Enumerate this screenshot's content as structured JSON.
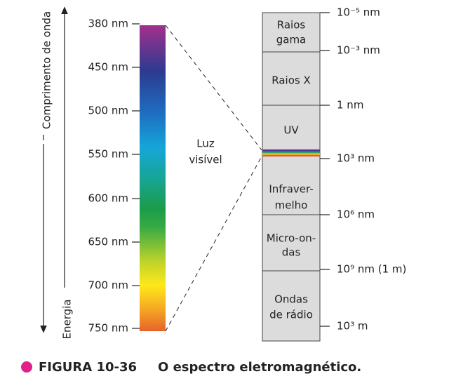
{
  "axes": {
    "wavelength": "Comprimento de onda",
    "energy": "Energia"
  },
  "visible_scale": [
    "380 nm",
    "450 nm",
    "500 nm",
    "550 nm",
    "600 nm",
    "650 nm",
    "700 nm",
    "750 nm"
  ],
  "visible_label": [
    "Luz",
    "visível"
  ],
  "regions": [
    {
      "lines": [
        "Raios",
        "gama"
      ]
    },
    {
      "lines": [
        "Raios X"
      ]
    },
    {
      "lines": [
        "UV"
      ]
    },
    {
      "lines": [
        "Infraver-",
        "melho"
      ]
    },
    {
      "lines": [
        "Micro-on-",
        "das"
      ]
    },
    {
      "lines": [
        "Ondas",
        "de rádio"
      ]
    }
  ],
  "spectrum_ticks": [
    "10⁻⁵ nm",
    "10⁻³ nm",
    "1 nm",
    "10³ nm",
    "10⁶ nm",
    "10⁹ nm (1 m)",
    "10³ m"
  ],
  "caption": {
    "figure": "FIGURA 10-36",
    "text": "O espectro eletromagnético."
  }
}
